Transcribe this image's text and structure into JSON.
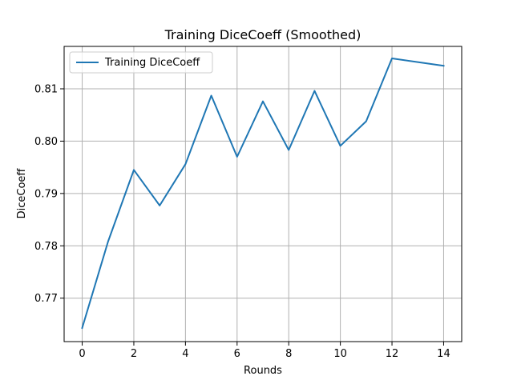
{
  "chart_data": {
    "type": "line",
    "title": "Training DiceCoeff (Smoothed)",
    "xlabel": "Rounds",
    "ylabel": "DiceCoeff",
    "xlim": [
      -0.7,
      14.7
    ],
    "ylim": [
      0.7617,
      0.8181
    ],
    "xticks": [
      0,
      2,
      4,
      6,
      8,
      10,
      12,
      14
    ],
    "yticks": [
      0.77,
      0.78,
      0.79,
      0.8,
      0.81
    ],
    "ytick_labels": [
      "0.77",
      "0.78",
      "0.79",
      "0.80",
      "0.81"
    ],
    "grid": true,
    "legend_position": "upper-left",
    "series": [
      {
        "name": "Training DiceCoeff",
        "color": "#1f77b4",
        "x": [
          0,
          1,
          2,
          3,
          4,
          5,
          6,
          7,
          8,
          9,
          10,
          11,
          12,
          13,
          14
        ],
        "values": [
          0.7643,
          0.7808,
          0.7945,
          0.7877,
          0.7956,
          0.8087,
          0.797,
          0.8076,
          0.7983,
          0.8096,
          0.7991,
          0.8038,
          0.8158,
          0.8151,
          0.8144
        ]
      }
    ]
  }
}
